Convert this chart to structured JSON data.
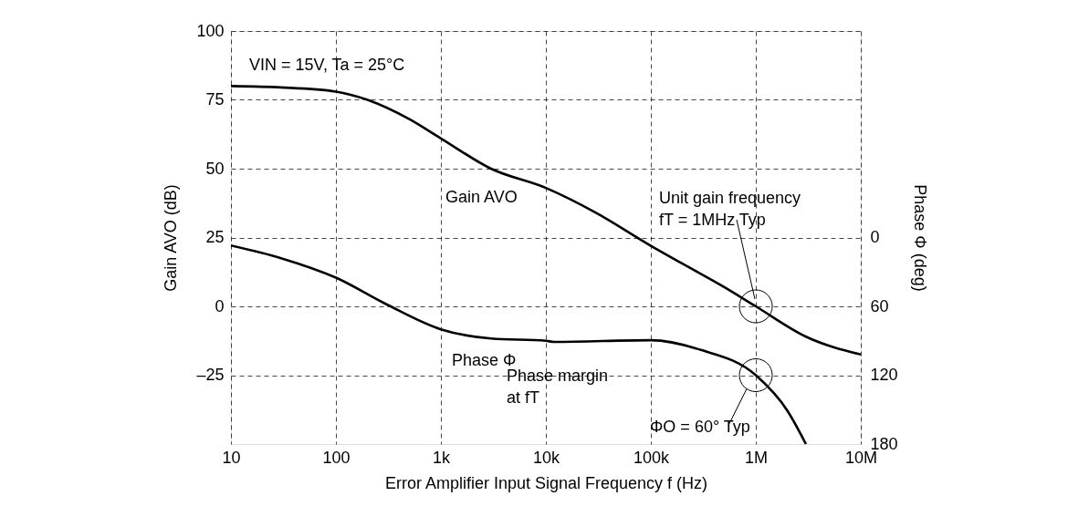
{
  "chart_data": {
    "type": "line",
    "xlabel": "Error Amplifier Input Signal Frequency  f (Hz)",
    "ylabel": "Gain  AVO (dB)",
    "y2label": "Phase  Φ (deg)",
    "log": "x",
    "xlim": [
      10,
      10000000
    ],
    "xticks": [
      10,
      100,
      {
        "value": 1000,
        "label": "1k"
      },
      {
        "value": 10000,
        "label": "10k"
      },
      {
        "value": 100000,
        "label": "100k"
      },
      {
        "value": 1000000,
        "label": "1M"
      },
      {
        "value": 10000000,
        "label": "10M"
      }
    ],
    "ylim": [
      -50,
      100
    ],
    "yticks": [
      100,
      75,
      50,
      25,
      0,
      {
        "value": -25,
        "label": "–25"
      }
    ],
    "y2lim": [
      180,
      -180
    ],
    "y2ticks": [
      0,
      60,
      120,
      180
    ],
    "grid": true,
    "line_style": "solid",
    "series": [
      {
        "name": "Gain  AVO",
        "color": "#000000",
        "x": [
          10,
          30,
          100,
          200,
          500,
          1000,
          3000,
          10000,
          30000,
          100000,
          200000,
          500000,
          1000000,
          3000000,
          10000000
        ],
        "values": [
          80,
          79.5,
          78,
          75,
          68,
          61,
          50,
          43,
          34,
          22,
          15.5,
          7,
          0,
          -11,
          -17.5
        ]
      },
      {
        "name": "Phase Φ",
        "color": "#000000",
        "axis": "y2",
        "x": [
          10,
          30,
          100,
          300,
          1000,
          3000,
          10000,
          12000,
          100000,
          300000,
          1000000,
          2000000,
          3000000
        ],
        "values": [
          7,
          18,
          35,
          58,
          80,
          88,
          90,
          91,
          89.5,
          98,
          120,
          151,
          180
        ]
      }
    ],
    "annotations": [
      "VIN = 15V, Ta = 25°C",
      {
        "text": "Unit gain frequency\nfT = 1MHz Typ",
        "x": 1000000,
        "y": 0
      },
      "Phase margin\nat fT",
      {
        "text": "ΦO = 60° Typ",
        "x": 1000000,
        "y": -25
      }
    ]
  }
}
